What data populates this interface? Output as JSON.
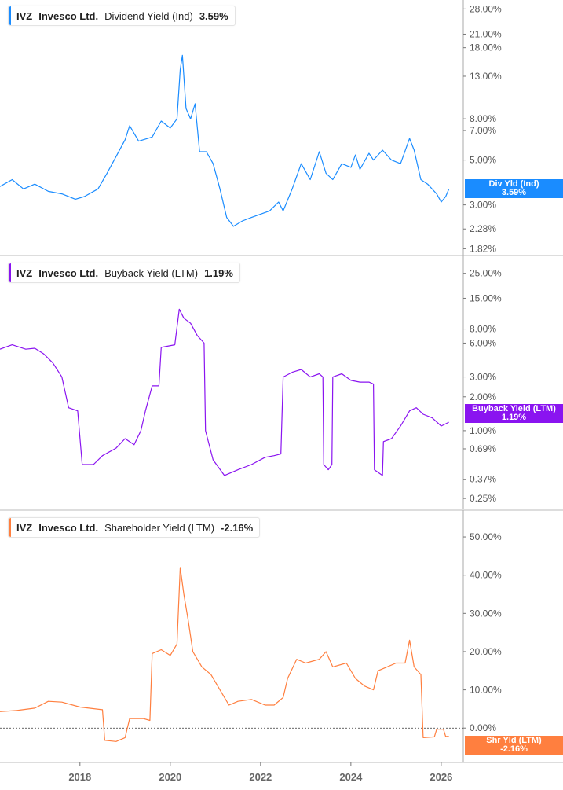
{
  "chart_data": [
    {
      "type": "line",
      "legend": {
        "ticker": "IVZ",
        "company": "Invesco Ltd.",
        "metric": "Dividend Yield (Ind)",
        "value": "3.59%"
      },
      "tag": {
        "label": "Div Yld (Ind)",
        "value": "3.59%"
      },
      "color": "#1a8cff",
      "yscale": "log",
      "ylim": [
        1.7,
        31
      ],
      "yticks": [
        "28.00%",
        "21.00%",
        "18.00%",
        "13.00%",
        "8.00%",
        "7.00%",
        "5.00%",
        "3.00%",
        "2.28%",
        "1.82%"
      ],
      "series": [
        {
          "x": [
            2016.23,
            2016.5,
            2016.75,
            2017.0,
            2017.3,
            2017.6,
            2017.9,
            2018.1,
            2018.4,
            2018.6,
            2018.8,
            2019.0,
            2019.1,
            2019.3,
            2019.6,
            2019.8,
            2020.0,
            2020.15,
            2020.22,
            2020.27,
            2020.35,
            2020.45,
            2020.55,
            2020.65,
            2020.8,
            2020.95,
            2021.1,
            2021.25,
            2021.4,
            2021.6,
            2021.8,
            2022.0,
            2022.2,
            2022.4,
            2022.5,
            2022.7,
            2022.9,
            2023.1,
            2023.3,
            2023.45,
            2023.6,
            2023.8,
            2024.0,
            2024.1,
            2024.2,
            2024.4,
            2024.5,
            2024.7,
            2024.9,
            2025.1,
            2025.3,
            2025.4,
            2025.55,
            2025.7,
            2025.9,
            2026.0,
            2026.1,
            2026.17
          ],
          "y": [
            3.7,
            4.0,
            3.6,
            3.8,
            3.5,
            3.4,
            3.2,
            3.3,
            3.6,
            4.3,
            5.2,
            6.3,
            7.4,
            6.2,
            6.5,
            7.8,
            7.2,
            8.0,
            14,
            16.5,
            9,
            8.0,
            9.5,
            5.5,
            5.5,
            4.8,
            3.6,
            2.6,
            2.35,
            2.5,
            2.6,
            2.7,
            2.8,
            3.1,
            2.8,
            3.6,
            4.8,
            4.0,
            5.5,
            4.3,
            4.0,
            4.8,
            4.6,
            5.3,
            4.5,
            5.4,
            5.0,
            5.6,
            5.0,
            4.8,
            6.4,
            5.6,
            4.0,
            3.8,
            3.4,
            3.1,
            3.3,
            3.59
          ]
        }
      ]
    },
    {
      "type": "line",
      "legend": {
        "ticker": "IVZ",
        "company": "Invesco Ltd.",
        "metric": "Buyback Yield (LTM)",
        "value": "1.19%"
      },
      "tag": {
        "label": "Buyback Yield (LTM)",
        "value": "1.19%"
      },
      "color": "#8a14f0",
      "yscale": "log",
      "ylim": [
        0.2,
        36
      ],
      "yticks": [
        "25.00%",
        "15.00%",
        "8.00%",
        "6.00%",
        "3.00%",
        "2.00%",
        "1.00%",
        "0.69%",
        "0.37%",
        "0.25%"
      ],
      "series": [
        {
          "x": [
            2016.23,
            2016.5,
            2016.8,
            2017.0,
            2017.2,
            2017.4,
            2017.6,
            2017.75,
            2017.95,
            2018.05,
            2018.3,
            2018.5,
            2018.8,
            2019.0,
            2019.2,
            2019.35,
            2019.45,
            2019.6,
            2019.75,
            2019.8,
            2020.1,
            2020.2,
            2020.3,
            2020.45,
            2020.6,
            2020.75,
            2020.78,
            2020.95,
            2021.2,
            2021.5,
            2021.8,
            2022.1,
            2022.3,
            2022.45,
            2022.5,
            2022.7,
            2022.9,
            2023.1,
            2023.3,
            2023.38,
            2023.4,
            2023.5,
            2023.58,
            2023.6,
            2023.8,
            2024.0,
            2024.2,
            2024.4,
            2024.5,
            2024.52,
            2024.7,
            2024.72,
            2024.9,
            2025.1,
            2025.3,
            2025.45,
            2025.6,
            2025.8,
            2026.0,
            2026.17
          ],
          "y": [
            5.3,
            5.8,
            5.3,
            5.4,
            4.8,
            4.0,
            3.0,
            1.6,
            1.5,
            0.5,
            0.5,
            0.6,
            0.7,
            0.85,
            0.75,
            1.0,
            1.5,
            2.5,
            2.5,
            5.5,
            5.8,
            12.0,
            10,
            9,
            7,
            6,
            1.0,
            0.55,
            0.4,
            0.45,
            0.5,
            0.58,
            0.6,
            0.62,
            3.0,
            3.3,
            3.5,
            3.0,
            3.2,
            3.0,
            0.5,
            0.45,
            0.5,
            3.0,
            3.2,
            2.8,
            2.7,
            2.7,
            2.6,
            0.45,
            0.4,
            0.8,
            0.85,
            1.1,
            1.5,
            1.6,
            1.4,
            1.3,
            1.1,
            1.19
          ]
        }
      ]
    },
    {
      "type": "line",
      "legend": {
        "ticker": "IVZ",
        "company": "Invesco Ltd.",
        "metric": "Shareholder Yield (LTM)",
        "value": "-2.16%"
      },
      "tag": {
        "label": "Shr Yld (LTM)",
        "value": "-2.16%"
      },
      "color": "#ff7f3f",
      "yscale": "linear",
      "ylim": [
        -9,
        57
      ],
      "yticks": [
        "50.00%",
        "40.00%",
        "30.00%",
        "20.00%",
        "10.00%",
        "0.00%"
      ],
      "reference_line": 0,
      "series": [
        {
          "x": [
            2016.23,
            2016.6,
            2017.0,
            2017.3,
            2017.6,
            2018.0,
            2018.2,
            2018.5,
            2018.55,
            2018.8,
            2019.0,
            2019.1,
            2019.4,
            2019.55,
            2019.6,
            2019.8,
            2020.0,
            2020.15,
            2020.22,
            2020.3,
            2020.4,
            2020.5,
            2020.7,
            2020.9,
            2021.1,
            2021.3,
            2021.5,
            2021.8,
            2022.1,
            2022.3,
            2022.5,
            2022.6,
            2022.8,
            2023.0,
            2023.3,
            2023.45,
            2023.6,
            2023.9,
            2024.1,
            2024.3,
            2024.5,
            2024.6,
            2024.8,
            2025.0,
            2025.2,
            2025.3,
            2025.4,
            2025.55,
            2025.6,
            2025.85,
            2025.9,
            2026.05,
            2026.1,
            2026.17
          ],
          "y": [
            4.3,
            4.6,
            5.2,
            7.0,
            6.8,
            5.5,
            5.2,
            4.8,
            -3.2,
            -3.5,
            -2.5,
            2.5,
            2.5,
            2.0,
            19.5,
            20.5,
            19,
            22,
            42,
            35,
            28,
            20,
            16,
            14,
            10,
            6,
            7,
            7.5,
            6,
            6,
            8,
            13,
            18,
            17,
            18,
            20,
            16,
            17,
            13,
            11,
            10,
            15,
            16,
            17,
            17,
            23,
            16,
            14,
            -2.5,
            -2.3,
            -0.3,
            -0.3,
            -2.2,
            -2.16
          ]
        }
      ]
    }
  ],
  "x_axis": {
    "ticks": [
      "2018",
      "2020",
      "2022",
      "2024",
      "2026"
    ],
    "range": [
      2016.23,
      2026.35
    ]
  }
}
